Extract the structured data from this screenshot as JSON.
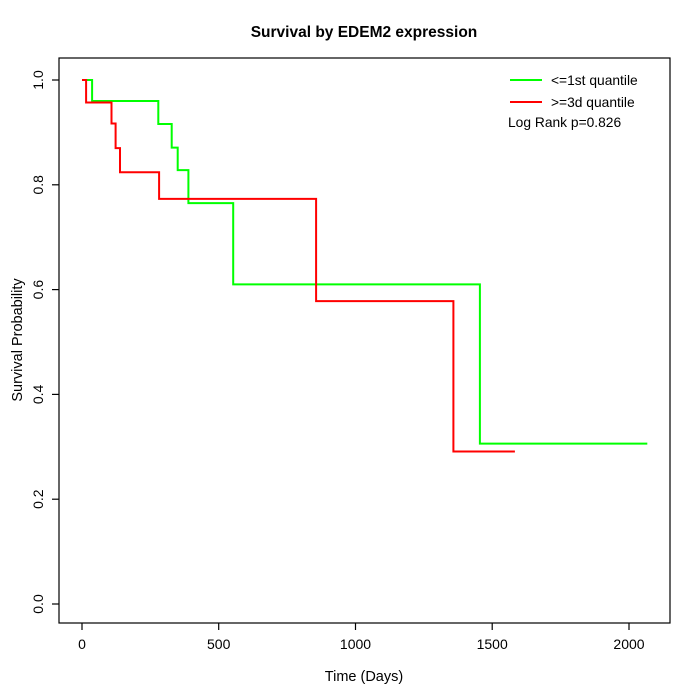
{
  "chart_data": {
    "type": "line",
    "subtype": "kaplan-meier-step-curves",
    "title": "Survival by EDEM2 expression",
    "xlabel": "Time (Days)",
    "ylabel": "Survival Probability",
    "xlim": [
      -84,
      2150
    ],
    "ylim": [
      -0.0363,
      1.042
    ],
    "x_ticks": [
      0,
      500,
      1000,
      1500,
      2000
    ],
    "y_tick_values": [
      0.0,
      0.2,
      0.4,
      0.6,
      0.8,
      1.0
    ],
    "y_tick_labels": [
      "0.0",
      "0.2",
      "0.4",
      "0.6",
      "0.8",
      "1.0"
    ],
    "grid": false,
    "legend_position": "top-right-inside",
    "annotation": "Log Rank p=0.826",
    "colors": {
      "background": "#FFFFFF",
      "frame": "#000000",
      "text": "#000000",
      "group_low": "#00FF00",
      "group_high": "#FF0000"
    },
    "legend": [
      {
        "label": "<=1st quantile",
        "color": "#00FF00"
      },
      {
        "label": ">=3d quantile",
        "color": "#FF0000"
      }
    ],
    "series": [
      {
        "name": "<=1st quantile",
        "color": "#00FF00",
        "points": [
          [
            0,
            1.0
          ],
          [
            37,
            1.0
          ],
          [
            37,
            0.96
          ],
          [
            279,
            0.96
          ],
          [
            279,
            0.916
          ],
          [
            328,
            0.916
          ],
          [
            328,
            0.871
          ],
          [
            350,
            0.871
          ],
          [
            350,
            0.828
          ],
          [
            389,
            0.828
          ],
          [
            389,
            0.765
          ],
          [
            553,
            0.765
          ],
          [
            553,
            0.61
          ],
          [
            1455,
            0.61
          ],
          [
            1455,
            0.306
          ],
          [
            2067,
            0.306
          ]
        ]
      },
      {
        "name": ">=3d quantile",
        "color": "#FF0000",
        "points": [
          [
            0,
            1.0
          ],
          [
            15,
            1.0
          ],
          [
            15,
            0.957
          ],
          [
            108,
            0.957
          ],
          [
            108,
            0.917
          ],
          [
            123,
            0.917
          ],
          [
            123,
            0.87
          ],
          [
            139,
            0.87
          ],
          [
            139,
            0.824
          ],
          [
            282,
            0.824
          ],
          [
            282,
            0.773
          ],
          [
            856,
            0.773
          ],
          [
            856,
            0.578
          ],
          [
            1358,
            0.578
          ],
          [
            1358,
            0.291
          ],
          [
            1583,
            0.291
          ]
        ]
      }
    ]
  }
}
